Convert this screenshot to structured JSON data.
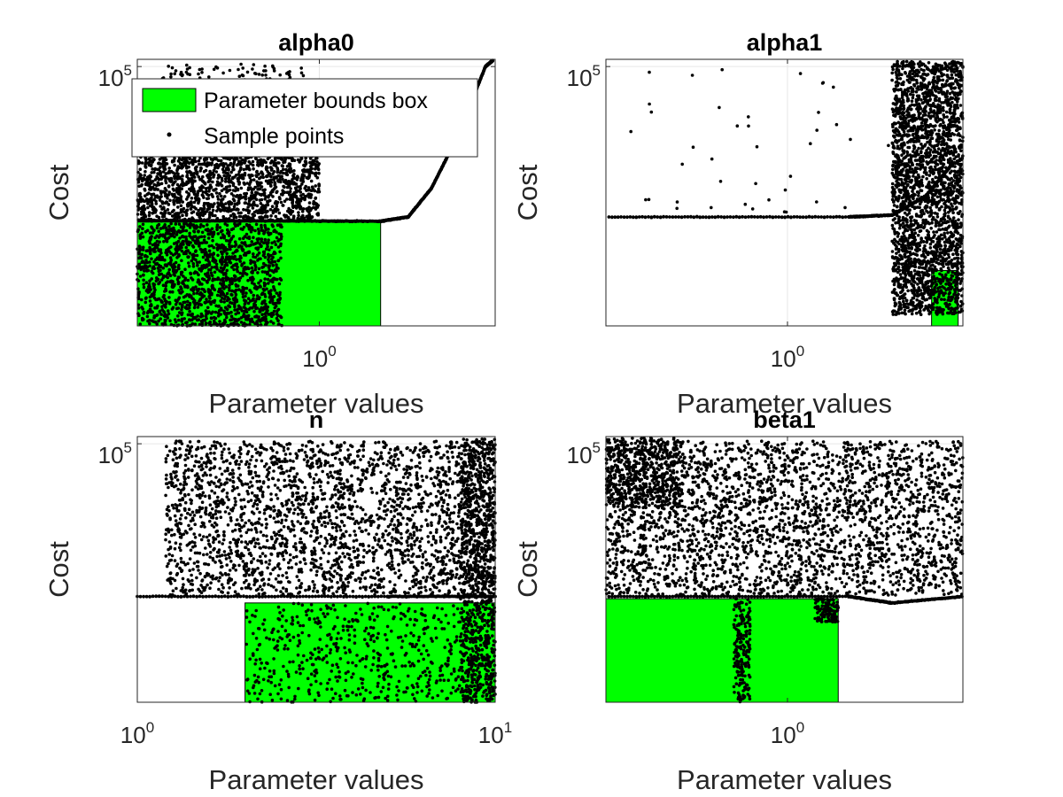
{
  "chart_data": [
    {
      "type": "scatter",
      "title": "alpha0",
      "xlabel": "Parameter values",
      "ylabel": "Cost",
      "x_scale": "log",
      "y_scale": "log",
      "xlim": [
        0.3,
        3.2
      ],
      "ylim": [
        8,
        130000
      ],
      "x_ticks": [
        {
          "base": "10",
          "exp": "0",
          "value": 1
        }
      ],
      "y_ticks": [
        {
          "base": "10",
          "exp": "5",
          "value": 100000
        }
      ],
      "grid": true,
      "bounds_box": {
        "x": [
          0.3,
          1.5
        ],
        "y": [
          8,
          350
        ]
      },
      "series": [
        {
          "name": "Parameter bounds box",
          "kind": "box",
          "color": "#00ff00"
        },
        {
          "name": "Sample points",
          "kind": "points",
          "color": "#000000"
        }
      ],
      "point_clusters": [
        {
          "x": [
            0.3,
            0.78
          ],
          "y": [
            8,
            330
          ],
          "n": 1500
        },
        {
          "x": [
            0.3,
            1.0
          ],
          "y": [
            360,
            6000
          ],
          "n": 1700
        },
        {
          "x": [
            0.35,
            0.9
          ],
          "y": [
            6000,
            110000
          ],
          "n": 350
        }
      ],
      "point_curve": [
        [
          0.3,
          370
        ],
        [
          0.8,
          365
        ],
        [
          1.5,
          360
        ],
        [
          1.8,
          420
        ],
        [
          2.1,
          1200
        ],
        [
          2.5,
          8000
        ],
        [
          3.0,
          100000
        ],
        [
          3.15,
          125000
        ]
      ],
      "legend": {
        "location": "top-left",
        "entries": [
          "Parameter bounds box",
          "Sample points"
        ]
      }
    },
    {
      "type": "scatter",
      "title": "alpha1",
      "xlabel": "Parameter values",
      "ylabel": "Cost",
      "x_scale": "log",
      "y_scale": "log",
      "xlim": [
        0.3,
        3.2
      ],
      "ylim": [
        8,
        130000
      ],
      "x_ticks": [
        {
          "base": "10",
          "exp": "0",
          "value": 1
        }
      ],
      "y_ticks": [
        {
          "base": "10",
          "exp": "5",
          "value": 100000
        }
      ],
      "grid": true,
      "bounds_box": {
        "x": [
          2.6,
          3.1
        ],
        "y": [
          8,
          60
        ]
      },
      "series": [
        {
          "name": "Parameter bounds box",
          "kind": "box",
          "color": "#00ff00"
        },
        {
          "name": "Sample points",
          "kind": "points",
          "color": "#000000"
        }
      ],
      "point_clusters": [
        {
          "x": [
            2.0,
            3.2
          ],
          "y": [
            12,
            120000
          ],
          "n": 2600
        },
        {
          "x": [
            0.35,
            2.0
          ],
          "y": [
            500,
            110000
          ],
          "n": 40
        }
      ],
      "point_curve": [
        [
          0.3,
          420
        ],
        [
          1.5,
          420
        ],
        [
          2.0,
          450
        ],
        [
          2.5,
          900
        ],
        [
          3.0,
          3000
        ]
      ],
      "legend": null
    },
    {
      "type": "scatter",
      "title": "n",
      "xlabel": "Parameter values",
      "ylabel": "Cost",
      "x_scale": "log",
      "y_scale": "log",
      "xlim": [
        1,
        10
      ],
      "ylim": [
        8,
        130000
      ],
      "x_ticks": [
        {
          "base": "10",
          "exp": "0",
          "value": 1
        },
        {
          "base": "10",
          "exp": "1",
          "value": 10
        }
      ],
      "y_ticks": [
        {
          "base": "10",
          "exp": "5",
          "value": 100000
        }
      ],
      "grid": true,
      "bounds_box": {
        "x": [
          2,
          10
        ],
        "y": [
          8,
          300
        ]
      },
      "series": [
        {
          "name": "Parameter bounds box",
          "kind": "box",
          "color": "#00ff00"
        },
        {
          "name": "Sample points",
          "kind": "points",
          "color": "#000000"
        }
      ],
      "point_clusters": [
        {
          "x": [
            1.2,
            10
          ],
          "y": [
            400,
            110000
          ],
          "n": 2600
        },
        {
          "x": [
            2.0,
            10
          ],
          "y": [
            8,
            300
          ],
          "n": 600
        },
        {
          "x": [
            8.0,
            10
          ],
          "y": [
            8,
            120000
          ],
          "n": 900
        }
      ],
      "point_curve": [
        [
          1,
          380
        ],
        [
          5,
          380
        ],
        [
          10,
          380
        ]
      ],
      "legend": null
    },
    {
      "type": "scatter",
      "title": "beta1",
      "xlabel": "Parameter values",
      "ylabel": "Cost",
      "x_scale": "log",
      "y_scale": "log",
      "xlim": [
        0.3,
        3.2
      ],
      "ylim": [
        8,
        130000
      ],
      "x_ticks": [
        {
          "base": "10",
          "exp": "0",
          "value": 1
        }
      ],
      "y_ticks": [
        {
          "base": "10",
          "exp": "5",
          "value": 100000
        }
      ],
      "grid": true,
      "bounds_box": {
        "x": [
          0.3,
          1.4
        ],
        "y": [
          8,
          350
        ]
      },
      "series": [
        {
          "name": "Parameter bounds box",
          "kind": "box",
          "color": "#00ff00"
        },
        {
          "name": "Sample points",
          "kind": "points",
          "color": "#000000"
        }
      ],
      "point_clusters": [
        {
          "x": [
            0.3,
            3.2
          ],
          "y": [
            400,
            110000
          ],
          "n": 2800
        },
        {
          "x": [
            0.3,
            0.5
          ],
          "y": [
            10000,
            125000
          ],
          "n": 500
        },
        {
          "x": [
            0.7,
            0.78
          ],
          "y": [
            8,
            350
          ],
          "n": 200
        },
        {
          "x": [
            1.2,
            1.4
          ],
          "y": [
            150,
            350
          ],
          "n": 120
        }
      ],
      "point_curve": [
        [
          0.3,
          380
        ],
        [
          1.5,
          380
        ],
        [
          2.0,
          300
        ],
        [
          3.2,
          380
        ]
      ],
      "legend": null
    }
  ]
}
